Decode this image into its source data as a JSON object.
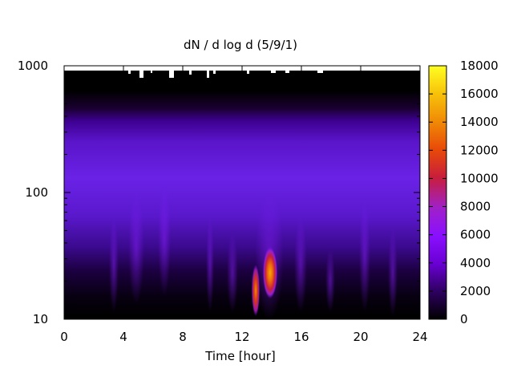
{
  "chart_data": {
    "type": "heatmap",
    "title": "dN / d log d (5/9/1)",
    "xlabel": "Time [hour]",
    "ylabel": "",
    "x_ticks": [
      "0",
      "4",
      "8",
      "12",
      "16",
      "20",
      "24"
    ],
    "y_ticks": [
      "10",
      "100",
      "1000"
    ],
    "xlim": [
      0,
      24
    ],
    "ylim": [
      10,
      1000
    ],
    "y_scale": "log",
    "colorbar": {
      "range": [
        0,
        18000
      ],
      "ticks": [
        "0",
        "2000",
        "4000",
        "6000",
        "8000",
        "10000",
        "12000",
        "14000",
        "16000",
        "18000"
      ],
      "palette": [
        "#000000",
        "#2e0060",
        "#6a00d4",
        "#8a10ff",
        "#a020c8",
        "#c81e3c",
        "#e84a08",
        "#f08a06",
        "#f7c20a",
        "#ffff22"
      ]
    },
    "features": [
      {
        "name": "background-mode",
        "time_range": [
          0,
          24
        ],
        "diameter_range": [
          60,
          400
        ],
        "value": 3500
      },
      {
        "name": "nucleation-burst-a",
        "time": 12.9,
        "diameter_range": [
          10,
          25
        ],
        "value": 10000
      },
      {
        "name": "nucleation-burst-b",
        "time": 13.8,
        "diameter_range": [
          13,
          30
        ],
        "value": 13000
      }
    ]
  }
}
